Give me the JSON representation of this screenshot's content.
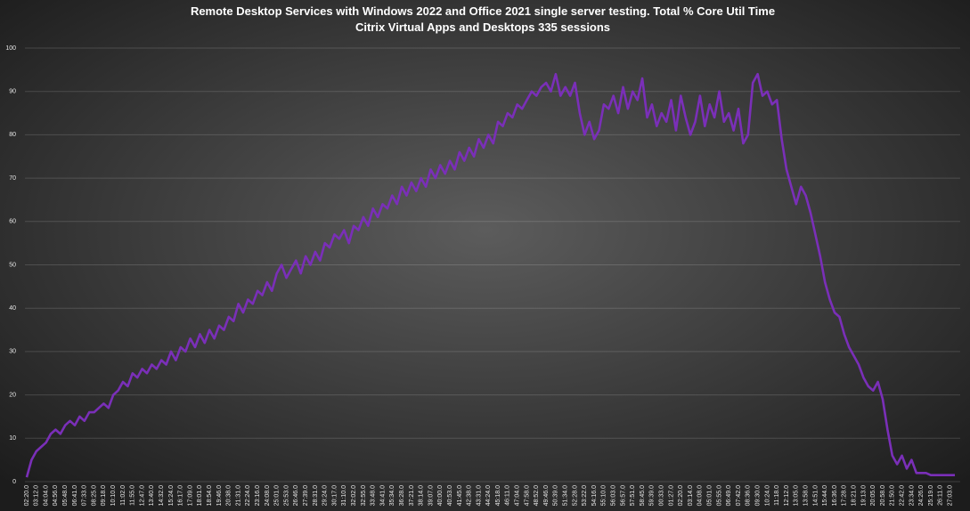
{
  "chart_data": {
    "type": "line",
    "title": "Remote Desktop Services with Windows 2022 and Office 2021 single server testing.  Total % Core Util Time",
    "subtitle": "Citrix Virtual Apps and Desktops 335 sessions",
    "categories": [
      "02:20.0",
      null,
      "03:12.0",
      null,
      "04:04.0",
      null,
      "04:56.0",
      null,
      "05:48.0",
      null,
      "06:41.0",
      null,
      "07:33.0",
      null,
      "08:25.0",
      null,
      "09:18.0",
      null,
      "10:10.0",
      null,
      "11:02.0",
      null,
      "11:55.0",
      null,
      "12:47.0",
      null,
      "13:40.0",
      null,
      "14:32.0",
      null,
      "15:24.0",
      null,
      "16:17.0",
      null,
      "17:09.0",
      null,
      "18:01.0",
      null,
      "18:54.0",
      null,
      "19:46.0",
      null,
      "20:38.0",
      null,
      "21:31.0",
      null,
      "22:24.0",
      null,
      "23:16.0",
      null,
      "24:08.0",
      null,
      "25:01.0",
      null,
      "25:53.0",
      null,
      "26:46.0",
      null,
      "27:39.0",
      null,
      "28:31.0",
      null,
      "29:24.0",
      null,
      "30:17.0",
      null,
      "31:10.0",
      null,
      "32:02.0",
      null,
      "32:55.0",
      null,
      "33:48.0",
      null,
      "34:41.0",
      null,
      "35:34.0",
      null,
      "36:28.0",
      null,
      "37:21.0",
      null,
      "38:14.0",
      null,
      "39:07.0",
      null,
      "40:00.0",
      null,
      "40:53.0",
      null,
      "41:45.0",
      null,
      "42:38.0",
      null,
      "43:31.0",
      null,
      "44:24.0",
      null,
      "45:18.0",
      null,
      "46:11.0",
      null,
      "47:04.0",
      null,
      "47:58.0",
      null,
      "48:52.0",
      null,
      "49:46.0",
      null,
      "50:39.0",
      null,
      "51:34.0",
      null,
      "52:28.0",
      null,
      "53:22.0",
      null,
      "54:16.0",
      null,
      "55:10.0",
      null,
      "56:03.0",
      null,
      "56:57.0",
      null,
      "57:51.0",
      null,
      "58:45.0",
      null,
      "59:39.0",
      null,
      "00:33.0",
      null,
      "01:27.0",
      null,
      "02:20.0",
      null,
      "03:14.0",
      null,
      "04:08.0",
      null,
      "05:01.0",
      null,
      "05:55.0",
      null,
      "06:49.0",
      null,
      "07:42.0",
      null,
      "08:36.0",
      null,
      "09:30.0",
      null,
      "10:24.0",
      null,
      "11:18.0",
      null,
      "12:12.0",
      null,
      "13:05.0",
      null,
      "13:58.0",
      null,
      "14:51.0",
      null,
      "15:44.0",
      null,
      "16:36.0",
      null,
      "17:28.0",
      null,
      "18:21.0",
      null,
      "19:13.0",
      null,
      "20:05.0",
      null,
      "20:58.0",
      null,
      "21:50.0",
      null,
      "22:42.0",
      null,
      "23:34.0",
      null,
      "24:26.0",
      null,
      "25:19.0",
      null,
      "26:11.0",
      null,
      "27:03.0",
      null
    ],
    "values": [
      1,
      5,
      7,
      8,
      9,
      11,
      12,
      11,
      13,
      14,
      13,
      15,
      14,
      16,
      16,
      17,
      18,
      17,
      20,
      21,
      23,
      22,
      25,
      24,
      26,
      25,
      27,
      26,
      28,
      27,
      30,
      28,
      31,
      30,
      33,
      31,
      34,
      32,
      35,
      33,
      36,
      35,
      38,
      37,
      41,
      39,
      42,
      41,
      44,
      43,
      46,
      44,
      48,
      50,
      47,
      49,
      51,
      48,
      52,
      50,
      53,
      51,
      55,
      54,
      57,
      56,
      58,
      55,
      59,
      58,
      61,
      59,
      63,
      61,
      64,
      63,
      66,
      64,
      68,
      66,
      69,
      67,
      70,
      68,
      72,
      70,
      73,
      71,
      74,
      72,
      76,
      74,
      77,
      75,
      79,
      77,
      80,
      78,
      83,
      82,
      85,
      84,
      87,
      86,
      88,
      90,
      89,
      91,
      92,
      90,
      94,
      89,
      91,
      89,
      92,
      85,
      80,
      83,
      79,
      81,
      87,
      86,
      89,
      85,
      91,
      86,
      90,
      88,
      93,
      84,
      87,
      82,
      85,
      83,
      88,
      81,
      89,
      84,
      80,
      83,
      89,
      82,
      87,
      84,
      90,
      83,
      85,
      81,
      86,
      78,
      80,
      92,
      94,
      89,
      90,
      87,
      88,
      79,
      72,
      68,
      64,
      68,
      66,
      62,
      57,
      52,
      46,
      42,
      39,
      38,
      34,
      31,
      29,
      27,
      24,
      22,
      21,
      23,
      19,
      12,
      6,
      4,
      6,
      3,
      5,
      2,
      2,
      2,
      1.5,
      1.5,
      1.5,
      1.5,
      1.5,
      1.5
    ],
    "color": "#7a2fb8",
    "ylim": [
      0,
      100
    ],
    "yticks": [
      0,
      10,
      20,
      30,
      40,
      50,
      60,
      70,
      80,
      90,
      100
    ],
    "grid": true
  }
}
